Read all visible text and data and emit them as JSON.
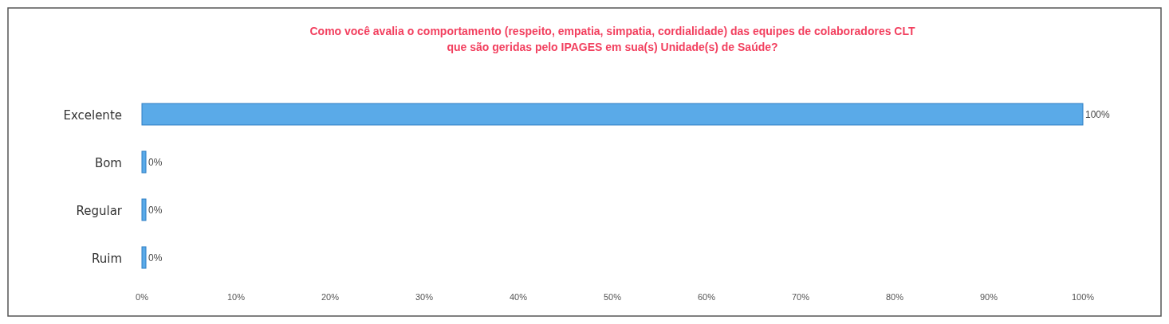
{
  "chart_data": {
    "type": "bar",
    "orientation": "horizontal",
    "title": "Como você avalia o comportamento (respeito, empatia, simpatia, cordialidade) das equipes de colaboradores CLT que são geridas pelo IPAGES em sua(s) Unidade(s) de Saúde?",
    "categories": [
      "Excelente",
      "Bom",
      "Regular",
      "Ruim"
    ],
    "values": [
      100,
      0,
      0,
      0
    ],
    "color": "#5aaae8",
    "value_labels": [
      "100%",
      "0%",
      "0%",
      "0%"
    ],
    "xlim": [
      0,
      100
    ],
    "xticks": [
      {
        "value": 0,
        "label": "0%"
      },
      {
        "value": 10,
        "label": "10%"
      },
      {
        "value": 20,
        "label": "20%"
      },
      {
        "value": 30,
        "label": "30%"
      },
      {
        "value": 40,
        "label": "40%"
      },
      {
        "value": 50,
        "label": "50%"
      },
      {
        "value": 60,
        "label": "60%"
      },
      {
        "value": 70,
        "label": "70%"
      },
      {
        "value": 80,
        "label": "80%"
      },
      {
        "value": 90,
        "label": "90%"
      },
      {
        "value": 100,
        "label": "100%"
      }
    ],
    "grid": false
  }
}
